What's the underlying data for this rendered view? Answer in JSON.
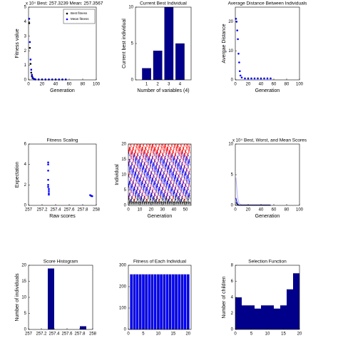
{
  "chart_data": [
    {
      "type": "scatter",
      "title": "Best: 257.3239 Mean: 257.3567",
      "y_multiplier": "x 10⁴",
      "xlabel": "Generation",
      "ylabel": "Fitness value",
      "xlim": [
        0,
        100
      ],
      "xticks": [
        0,
        20,
        40,
        60,
        80,
        100
      ],
      "ylim": [
        0,
        5
      ],
      "yticks": [
        0,
        1,
        2,
        3,
        4,
        5
      ],
      "legend": "upper right",
      "x": [
        1,
        2,
        3,
        4,
        5,
        6,
        8,
        10,
        15,
        20,
        25,
        30,
        35,
        40,
        45,
        50,
        55
      ],
      "series": [
        {
          "name": "Best fitness",
          "color": "#000000",
          "values": [
            3.9,
            2.2,
            1.1,
            0.5,
            0.25,
            0.12,
            0.05,
            0.03,
            0.03,
            0.03,
            0.03,
            0.03,
            0.03,
            0.03,
            0.03,
            0.03,
            0.03
          ]
        },
        {
          "name": "Mean fitness",
          "color": "#0000ff",
          "values": [
            4.2,
            2.6,
            1.4,
            0.7,
            0.35,
            0.18,
            0.08,
            0.04,
            0.03,
            0.03,
            0.03,
            0.03,
            0.03,
            0.03,
            0.03,
            0.03,
            0.03
          ]
        }
      ]
    },
    {
      "type": "bar",
      "title": "Current Best Individual",
      "xlabel": "Number of variables (4)",
      "ylabel": "Current best individual",
      "color": "#00008b",
      "xlim": [
        0,
        5
      ],
      "xticks": [
        1,
        2,
        3,
        4
      ],
      "ylim": [
        0,
        10
      ],
      "yticks": [
        0,
        5,
        10
      ],
      "x": [
        1,
        2,
        3,
        4
      ],
      "values": [
        1.6,
        4,
        10,
        5
      ]
    },
    {
      "type": "scatter",
      "title": "Average Distance Between Individuals",
      "xlabel": "Generation",
      "ylabel": "Avergae Distance",
      "xlim": [
        0,
        100
      ],
      "xticks": [
        0,
        20,
        40,
        60,
        80,
        100
      ],
      "ylim": [
        0,
        25
      ],
      "yticks": [
        0,
        10,
        20
      ],
      "x": [
        1,
        2,
        3,
        4,
        5,
        6,
        7,
        8,
        10,
        15,
        20,
        25,
        30,
        35,
        40,
        45,
        50,
        55
      ],
      "series": [
        {
          "color": "#0000ff",
          "values": [
            21,
            20,
            17,
            14,
            9,
            6,
            3,
            1.5,
            0.8,
            0.5,
            0.5,
            0.5,
            0.5,
            0.5,
            0.5,
            0.5,
            0.5,
            0.5
          ]
        }
      ]
    },
    {
      "type": "scatter",
      "title": "Fitness Scaling",
      "xlabel": "Raw scores",
      "ylabel": "Expectation",
      "xlim": [
        257,
        258
      ],
      "xticks": [
        257,
        257.2,
        257.4,
        257.6,
        257.8,
        258
      ],
      "ylim": [
        0,
        6
      ],
      "yticks": [
        0,
        2,
        4,
        6
      ],
      "x": [
        257.29,
        257.29,
        257.29,
        257.29,
        257.29,
        257.29,
        257.3,
        257.3,
        257.3,
        257.3,
        257.91,
        257.92,
        257.93,
        257.94
      ],
      "series": [
        {
          "color": "#0000ff",
          "values": [
            4.2,
            4,
            3.4,
            2.5,
            2,
            1.8,
            1.6,
            1.4,
            1.2,
            1.05,
            1,
            0.95,
            0.92,
            0.9
          ]
        }
      ]
    },
    {
      "type": "genealogy",
      "xlabel": "Generation",
      "ylabel": "Individual",
      "xlim": [
        0,
        55
      ],
      "xticks": [
        0,
        10,
        20,
        30,
        40,
        50
      ],
      "ylim": [
        0,
        20
      ],
      "yticks": [
        0,
        5,
        10,
        15,
        20
      ],
      "colors": [
        "#ff0000",
        "#0000ff",
        "#000000"
      ]
    },
    {
      "type": "line",
      "title": "Best, Worst, and Mean Scores",
      "y_multiplier": "x 10⁴",
      "xlabel": "Generation",
      "xlim": [
        0,
        100
      ],
      "xticks": [
        0,
        20,
        40,
        60,
        80,
        100
      ],
      "ylim": [
        0,
        10
      ],
      "yticks": [
        0,
        5,
        10
      ],
      "x": [
        1,
        2,
        3,
        4,
        5,
        6,
        8,
        10,
        15,
        20,
        30,
        40,
        50,
        55
      ],
      "series": [
        {
          "color": "#b0b0ff",
          "values": [
            4.5,
            3.2,
            1.8,
            1,
            0.6,
            0.3,
            0.2,
            0.1,
            0.1,
            0.1,
            0.1,
            0.1,
            0.1,
            0.1
          ]
        },
        {
          "color": "#0000ff",
          "values": [
            1.2,
            0.7,
            0.4,
            0.2,
            0.1,
            0.05,
            0.03,
            0.03,
            0.03,
            0.03,
            0.03,
            0.03,
            0.03,
            0.03
          ]
        },
        {
          "color": "#000000",
          "values": [
            0.5,
            0.3,
            0.1,
            0.05,
            0.03,
            0.03,
            0.03,
            0.03,
            0.03,
            0.03,
            0.03,
            0.03,
            0.03,
            0.03
          ]
        }
      ]
    },
    {
      "type": "histogram",
      "title": "Score Histogram",
      "ylabel": "Number of individuals",
      "color": "#00008b",
      "xlim": [
        257,
        258
      ],
      "xticks": [
        257,
        257.2,
        257.4,
        257.6,
        257.8,
        258
      ],
      "ylim": [
        0,
        20
      ],
      "yticks": [
        0,
        5,
        10,
        15,
        20
      ],
      "bins": [
        257,
        257.1,
        257.2,
        257.3,
        257.4,
        257.5,
        257.6,
        257.7,
        257.8,
        257.9,
        258
      ],
      "values": [
        0,
        0,
        0,
        19,
        0,
        0,
        0,
        0,
        1,
        0
      ]
    },
    {
      "type": "bar",
      "title": "Fitness of Each Individual",
      "color": "#0000ff",
      "xlim": [
        0,
        21
      ],
      "xticks": [
        0,
        5,
        10,
        15,
        20
      ],
      "ylim": [
        0,
        300
      ],
      "yticks": [
        0,
        100,
        200,
        300
      ],
      "x": [
        1,
        2,
        3,
        4,
        5,
        6,
        7,
        8,
        9,
        10,
        11,
        12,
        13,
        14,
        15,
        16,
        17,
        18,
        19,
        20
      ],
      "values": [
        257,
        257,
        257,
        257,
        257,
        257,
        257,
        257,
        257,
        257,
        257,
        257,
        257,
        257,
        257,
        257,
        257,
        257,
        257,
        257
      ]
    },
    {
      "type": "histogram",
      "title": "Selection Function",
      "ylabel": "Number of children",
      "color": "#00008b",
      "xlim": [
        0,
        20
      ],
      "xticks": [
        0,
        5,
        10,
        15,
        20
      ],
      "ylim": [
        0,
        8
      ],
      "yticks": [
        0,
        2,
        4,
        6,
        8
      ],
      "bins": [
        0,
        2,
        4,
        6,
        8,
        10,
        12,
        14,
        16,
        18,
        20
      ],
      "values": [
        4,
        3,
        3,
        2.6,
        3,
        3,
        2.6,
        3,
        5,
        7
      ]
    }
  ]
}
